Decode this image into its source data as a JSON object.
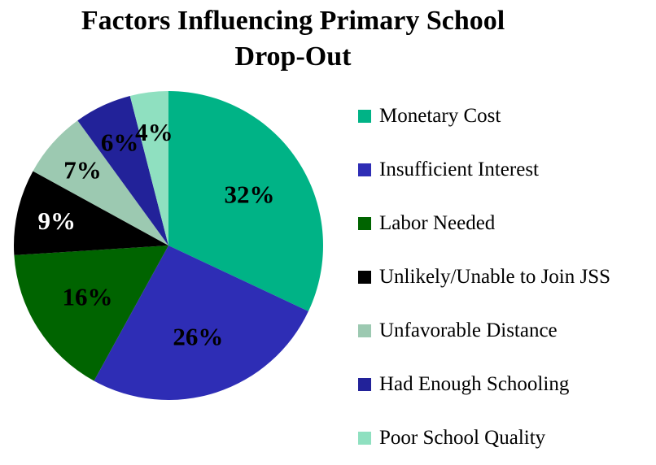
{
  "chart_data": {
    "type": "pie",
    "title_lines": [
      "Factors Influencing Primary School",
      "Drop-Out"
    ],
    "slices": [
      {
        "label": "Monetary Cost",
        "value": 32,
        "display": "32%",
        "color": "#00b386",
        "label_color": "#000000"
      },
      {
        "label": "Insufficient Interest",
        "value": 26,
        "display": "26%",
        "color": "#2e2db5",
        "label_color": "#000000"
      },
      {
        "label": "Labor Needed",
        "value": 16,
        "display": "16%",
        "color": "#006400",
        "label_color": "#000000"
      },
      {
        "label": "Unlikely/Unable to Join JSS",
        "value": 9,
        "display": "9%",
        "color": "#000000",
        "label_color": "#ffffff"
      },
      {
        "label": "Unfavorable Distance",
        "value": 7,
        "display": "7%",
        "color": "#9cc9b1",
        "label_color": "#000000"
      },
      {
        "label": "Had Enough Schooling",
        "value": 6,
        "display": "6%",
        "color": "#222299",
        "label_color": "#000000"
      },
      {
        "label": "Poor School Quality",
        "value": 4,
        "display": "4%",
        "color": "#8fe0c0",
        "label_color": "#000000"
      }
    ],
    "start": "12 o'clock",
    "direction": "clockwise",
    "legend_position": "right"
  }
}
